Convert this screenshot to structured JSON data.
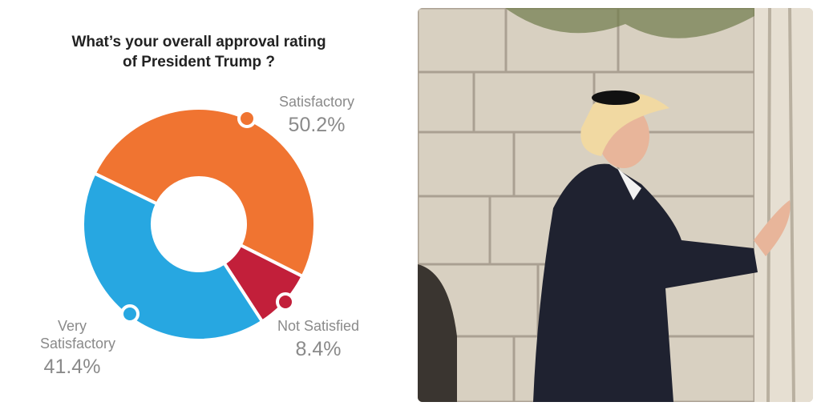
{
  "chart_data": {
    "type": "donut",
    "title": "What’s your overall approval rating of President Trump ?",
    "categories": [
      "Satisfactory",
      "Not Satisfied",
      "Very Satisfactory"
    ],
    "values": [
      50.2,
      8.4,
      41.4
    ],
    "value_labels": [
      "50.2%",
      "8.4%",
      "41.4%"
    ],
    "colors": [
      "#f07431",
      "#c21f3a",
      "#27a7e1"
    ]
  }
}
